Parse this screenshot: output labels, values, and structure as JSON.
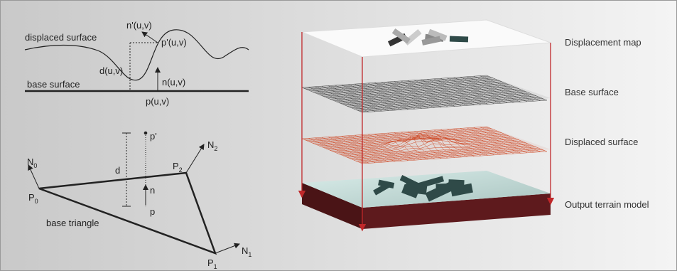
{
  "left_top": {
    "displaced_surface": "displaced surface",
    "n_prime": "n'(u,v)",
    "p_prime": "p'(u,v)",
    "d": "d(u,v)",
    "n": "n(u,v)",
    "base_surface": "base surface",
    "p": "p(u,v)"
  },
  "left_bottom": {
    "N0": {
      "text": "N",
      "sub": "0"
    },
    "N1": {
      "text": "N",
      "sub": "1"
    },
    "N2": {
      "text": "N",
      "sub": "2"
    },
    "P0": {
      "text": "P",
      "sub": "0"
    },
    "P1": {
      "text": "P",
      "sub": "1"
    },
    "P2": {
      "text": "P",
      "sub": "2"
    },
    "p_prime": "p'",
    "d": "d",
    "n": "n",
    "p": "p",
    "base_triangle": "base triangle"
  },
  "layers": [
    "Displacement map",
    "Base surface",
    "Displaced surface",
    "Output terrain model"
  ]
}
